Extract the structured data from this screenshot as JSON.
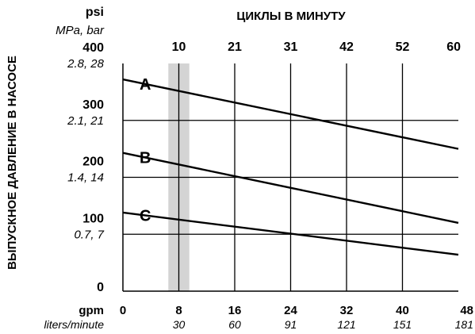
{
  "chart_data": {
    "type": "line",
    "title": "",
    "top_axis_label": "ЦИКЛЫ В МИНУТУ",
    "top_ticks": [
      {
        "x": 8,
        "label": "10"
      },
      {
        "x": 16,
        "label": "21"
      },
      {
        "x": 24,
        "label": "31"
      },
      {
        "x": 32,
        "label": "42"
      },
      {
        "x": 40,
        "label": "52"
      },
      {
        "x": 48,
        "label": "60"
      }
    ],
    "ylabel": "ВЫПУСКНОЕ ДАВЛЕНИЕ В НАСОСЕ",
    "y_unit_primary": "psi",
    "y_unit_secondary": "MPa, bar",
    "y_ticks": [
      {
        "value": 400,
        "label": "400",
        "sub": "2.8, 28"
      },
      {
        "value": 300,
        "label": "300",
        "sub": "2.1, 21"
      },
      {
        "value": 200,
        "label": "200",
        "sub": "1.4, 14"
      },
      {
        "value": 100,
        "label": "100",
        "sub": "0.7, 7"
      },
      {
        "value": 0,
        "label": "0",
        "sub": ""
      }
    ],
    "x_unit_primary": "gpm",
    "x_unit_secondary": "liters/minute",
    "x_ticks": [
      {
        "value": 0,
        "label": "0",
        "sub": ""
      },
      {
        "value": 8,
        "label": "8",
        "sub": "30"
      },
      {
        "value": 16,
        "label": "16",
        "sub": "60"
      },
      {
        "value": 24,
        "label": "24",
        "sub": "91"
      },
      {
        "value": 32,
        "label": "32",
        "sub": "121"
      },
      {
        "value": 40,
        "label": "40",
        "sub": "151"
      },
      {
        "value": 48,
        "label": "48",
        "sub": "181"
      }
    ],
    "xlim": [
      0,
      48
    ],
    "ylim": [
      0,
      400
    ],
    "highlight_band": {
      "x": [
        6.5,
        9.5
      ],
      "line_x": 8
    },
    "grid": true,
    "series": [
      {
        "name": "A",
        "x": [
          0,
          48
        ],
        "y": [
          372,
          250
        ]
      },
      {
        "name": "B",
        "x": [
          0,
          48
        ],
        "y": [
          243,
          120
        ]
      },
      {
        "name": "C",
        "x": [
          0,
          48
        ],
        "y": [
          138,
          64
        ]
      }
    ]
  }
}
